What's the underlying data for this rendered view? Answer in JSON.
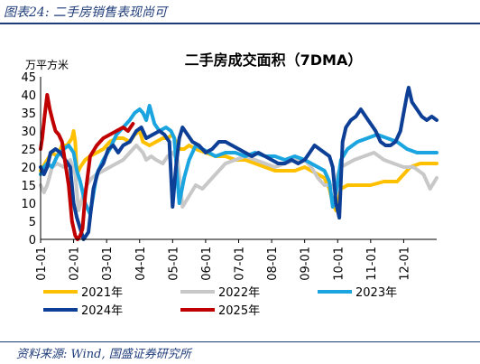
{
  "header": {
    "title": "图表24:  二手房销售表现尚可"
  },
  "footer": {
    "source": "资料来源:  Wind,  国盛证券研究所"
  },
  "chart_data": {
    "type": "line",
    "title": "二手房成交面积（7DMA）",
    "ylabel": "万平方米",
    "ylim": [
      0,
      45
    ],
    "yticks": [
      0,
      5,
      10,
      15,
      20,
      25,
      30,
      35,
      40,
      45
    ],
    "x_range": [
      1,
      13
    ],
    "categories": [
      "01-01",
      "02-01",
      "03-01",
      "04-01",
      "05-01",
      "06-01",
      "07-01",
      "08-01",
      "09-01",
      "10-01",
      "11-01",
      "12-01"
    ],
    "legend_position": "bottom",
    "series": [
      {
        "name": "2021年",
        "color": "#ffc000",
        "x": [
          1.0,
          1.2,
          1.35,
          1.5,
          1.65,
          1.8,
          1.95,
          2.0,
          2.05,
          2.1,
          2.2,
          2.35,
          2.5,
          2.7,
          2.9,
          3.1,
          3.3,
          3.5,
          3.7,
          3.85,
          4.0,
          4.1,
          4.3,
          4.5,
          4.7,
          4.85,
          5.0,
          5.1,
          5.2,
          5.35,
          5.5,
          5.7,
          6.0,
          6.3,
          6.6,
          6.9,
          7.2,
          7.5,
          7.8,
          8.1,
          8.4,
          8.7,
          9.0,
          9.2,
          9.4,
          9.6,
          9.75,
          9.85,
          9.95,
          10.1,
          10.3,
          10.6,
          11.0,
          11.4,
          11.8,
          12.2,
          12.5,
          12.8,
          13.0
        ],
        "y": [
          19,
          22,
          24,
          23,
          26,
          26,
          28,
          30,
          27,
          18,
          20,
          22,
          23,
          24,
          25,
          27,
          28,
          28,
          27,
          29,
          30,
          27,
          26,
          27,
          28,
          28,
          29,
          27,
          25,
          25,
          26,
          25,
          24,
          23,
          23,
          22,
          22,
          21,
          20,
          19,
          19,
          19,
          20,
          19,
          18,
          17,
          14,
          10,
          8,
          14,
          15,
          15,
          15,
          16,
          16,
          20,
          21,
          21,
          21
        ]
      },
      {
        "name": "2022年",
        "color": "#c8c8c8",
        "x": [
          1.0,
          1.1,
          1.2,
          1.35,
          1.5,
          1.7,
          1.9,
          2.05,
          2.15,
          2.25,
          2.4,
          2.55,
          2.7,
          2.9,
          3.1,
          3.3,
          3.5,
          3.7,
          3.9,
          4.0,
          4.1,
          4.2,
          4.35,
          4.5,
          4.7,
          4.85,
          5.0,
          5.15,
          5.3,
          5.5,
          5.7,
          5.9,
          6.1,
          6.3,
          6.6,
          6.9,
          7.2,
          7.5,
          7.8,
          8.1,
          8.4,
          8.7,
          9.0,
          9.2,
          9.4,
          9.6,
          9.8,
          9.9,
          10.0,
          10.1,
          10.3,
          10.5,
          10.8,
          11.1,
          11.4,
          11.7,
          12.0,
          12.3,
          12.6,
          12.8,
          13.0
        ],
        "y": [
          15,
          13,
          15,
          20,
          21,
          20,
          22,
          18,
          8,
          11,
          15,
          17,
          18,
          19,
          20,
          21,
          22,
          24,
          26,
          25,
          24,
          22,
          23,
          22,
          21,
          23,
          24,
          22,
          9,
          12,
          15,
          14,
          16,
          18,
          21,
          22,
          23,
          22,
          21,
          20,
          21,
          22,
          22,
          20,
          17,
          15,
          15,
          14,
          18,
          20,
          21,
          22,
          23,
          24,
          22,
          21,
          20,
          20,
          18,
          14,
          17
        ]
      },
      {
        "name": "2023年",
        "color": "#1aa4e0",
        "x": [
          1.0,
          1.1,
          1.2,
          1.35,
          1.5,
          1.7,
          1.85,
          2.0,
          2.1,
          2.2,
          2.35,
          2.5,
          2.7,
          2.9,
          3.1,
          3.3,
          3.5,
          3.7,
          3.85,
          4.0,
          4.1,
          4.2,
          4.3,
          4.45,
          4.6,
          4.8,
          4.95,
          5.05,
          5.2,
          5.35,
          5.5,
          5.7,
          5.9,
          6.1,
          6.3,
          6.6,
          6.9,
          7.2,
          7.5,
          7.8,
          8.1,
          8.4,
          8.7,
          9.0,
          9.2,
          9.4,
          9.6,
          9.75,
          9.85,
          9.95,
          10.1,
          10.3,
          10.6,
          10.9,
          11.2,
          11.5,
          11.8,
          12.1,
          12.4,
          12.7,
          12.9,
          13.0
        ],
        "y": [
          18,
          20,
          21,
          20,
          23,
          25,
          26,
          24,
          19,
          16,
          10,
          7,
          18,
          22,
          25,
          29,
          31,
          33,
          35,
          36,
          35,
          33,
          37,
          32,
          30,
          31,
          30,
          28,
          10,
          17,
          22,
          26,
          25,
          24,
          23,
          24,
          24,
          23,
          24,
          23,
          23,
          22,
          23,
          22,
          21,
          20,
          19,
          16,
          9,
          13,
          22,
          25,
          27,
          28,
          29,
          28,
          27,
          25,
          24,
          24,
          24,
          24
        ]
      },
      {
        "name": "2024年",
        "color": "#0d3f96",
        "x": [
          1.0,
          1.1,
          1.2,
          1.3,
          1.45,
          1.6,
          1.75,
          1.9,
          2.0,
          2.1,
          2.2,
          2.3,
          2.45,
          2.6,
          2.75,
          2.9,
          3.05,
          3.2,
          3.35,
          3.5,
          3.7,
          3.9,
          4.05,
          4.2,
          4.4,
          4.6,
          4.75,
          4.9,
          5.0,
          5.1,
          5.2,
          5.3,
          5.45,
          5.6,
          5.8,
          6.0,
          6.2,
          6.4,
          6.6,
          6.8,
          7.0,
          7.2,
          7.4,
          7.6,
          7.8,
          8.0,
          8.2,
          8.4,
          8.6,
          8.8,
          9.0,
          9.15,
          9.3,
          9.45,
          9.6,
          9.75,
          9.85,
          9.95,
          10.05,
          10.15,
          10.25,
          10.4,
          10.55,
          10.7,
          10.85,
          11.0,
          11.15,
          11.3,
          11.45,
          11.6,
          11.75,
          11.9,
          12.0,
          12.1,
          12.15,
          12.25,
          12.4,
          12.55,
          12.7,
          12.85,
          13.0
        ],
        "y": [
          20,
          18,
          20,
          24,
          25,
          24,
          22,
          20,
          10,
          6,
          3,
          0,
          2,
          14,
          19,
          21,
          25,
          26,
          24,
          26,
          27,
          30,
          31,
          28,
          29,
          30,
          29,
          27,
          9,
          20,
          28,
          31,
          29,
          27,
          26,
          24,
          25,
          27,
          27,
          26,
          25,
          24,
          23,
          24,
          23,
          22,
          21,
          21,
          22,
          21,
          22,
          24,
          26,
          25,
          24,
          23,
          20,
          10,
          6,
          27,
          31,
          33,
          34,
          36,
          34,
          32,
          30,
          27,
          26,
          26,
          27,
          30,
          35,
          40,
          42,
          38,
          36,
          34,
          33,
          34,
          33
        ]
      },
      {
        "name": "2025年",
        "color": "#c00000",
        "x": [
          1.0,
          1.05,
          1.12,
          1.2,
          1.28,
          1.36,
          1.45,
          1.55,
          1.65,
          1.75,
          1.85,
          1.95,
          2.05,
          2.12,
          2.2,
          2.27,
          2.35,
          2.5,
          2.7,
          2.9,
          3.1,
          3.3,
          3.5,
          3.65,
          3.8
        ],
        "y": [
          25,
          28,
          34,
          40,
          36,
          33,
          30,
          29,
          27,
          21,
          15,
          5,
          1,
          0,
          1,
          3,
          12,
          23,
          26,
          28,
          29,
          30,
          31,
          30,
          32
        ]
      }
    ]
  }
}
